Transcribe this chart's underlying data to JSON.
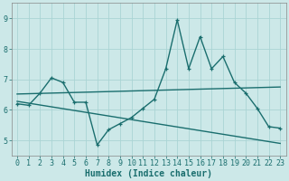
{
  "xlabel": "Humidex (Indice chaleur)",
  "bg_color": "#cce8e8",
  "line_color": "#1a6e6e",
  "grid_color": "#aad4d4",
  "x": [
    0,
    1,
    2,
    3,
    4,
    5,
    6,
    7,
    8,
    9,
    10,
    11,
    12,
    13,
    14,
    15,
    16,
    17,
    18,
    19,
    20,
    21,
    22,
    23
  ],
  "y_main": [
    6.2,
    6.15,
    6.55,
    7.05,
    6.9,
    6.25,
    6.25,
    4.85,
    5.35,
    5.55,
    5.75,
    6.05,
    6.35,
    7.35,
    8.95,
    7.35,
    8.4,
    7.35,
    7.75,
    6.9,
    6.55,
    6.05,
    5.45,
    5.4
  ],
  "y_line1": [
    6.52,
    6.53,
    6.54,
    6.55,
    6.56,
    6.57,
    6.58,
    6.59,
    6.6,
    6.61,
    6.62,
    6.63,
    6.64,
    6.65,
    6.66,
    6.67,
    6.68,
    6.69,
    6.7,
    6.71,
    6.72,
    6.73,
    6.74,
    6.75
  ],
  "y_line2": [
    6.28,
    6.22,
    6.16,
    6.1,
    6.04,
    5.98,
    5.92,
    5.86,
    5.8,
    5.74,
    5.68,
    5.62,
    5.56,
    5.5,
    5.44,
    5.38,
    5.32,
    5.26,
    5.2,
    5.14,
    5.08,
    5.02,
    4.96,
    4.9
  ],
  "ylim": [
    4.5,
    9.5
  ],
  "xlim": [
    -0.5,
    23.5
  ],
  "yticks": [
    5,
    6,
    7,
    8,
    9
  ],
  "xticks": [
    0,
    1,
    2,
    3,
    4,
    5,
    6,
    7,
    8,
    9,
    10,
    11,
    12,
    13,
    14,
    15,
    16,
    17,
    18,
    19,
    20,
    21,
    22,
    23
  ],
  "xlabel_fontsize": 7,
  "tick_fontsize": 6,
  "linewidth": 1.0,
  "marker_size": 3.5
}
